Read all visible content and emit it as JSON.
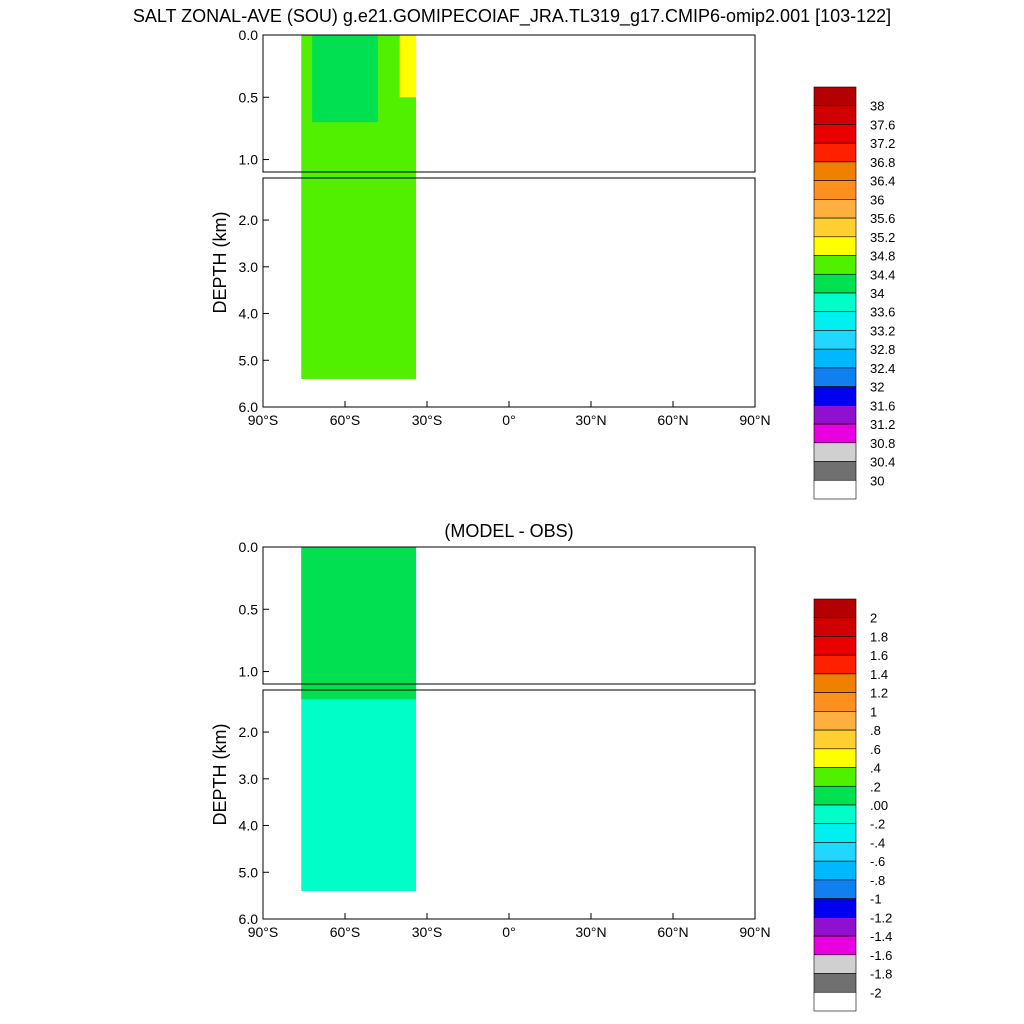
{
  "title": "SALT ZONAL-AVE (SOU) g.e21.GOMIPECOIAF_JRA.TL319_g17.CMIP6-omip2.001 [103-122]",
  "chart_data": [
    {
      "type": "heatmap",
      "title": "SALT ZONAL-AVE (SOU) g.e21.GOMIPECOIAF_JRA.TL319_g17.CMIP6-omip2.001 [103-122]",
      "ylabel": "DEPTH (km)",
      "xlabel": "",
      "xticks": [
        "90°S",
        "60°S",
        "30°S",
        "0°",
        "30°N",
        "60°N",
        "90°N"
      ],
      "yticks_upper": [
        "0.0",
        "0.5",
        "1.0"
      ],
      "yticks_lower": [
        "2.0",
        "3.0",
        "4.0",
        "5.0",
        "6.0"
      ],
      "xlim": [
        -90,
        90
      ],
      "ylim": [
        0,
        6
      ],
      "colorbar": {
        "labels": [
          "38",
          "37.6",
          "37.2",
          "36.8",
          "36.4",
          "36",
          "35.6",
          "35.2",
          "34.8",
          "34.4",
          "34",
          "33.6",
          "33.2",
          "32.8",
          "32.4",
          "32",
          "31.6",
          "31.2",
          "30.8",
          "30.4",
          "30"
        ],
        "colors": [
          "#b40000",
          "#d00000",
          "#e80000",
          "#ff2000",
          "#f08000",
          "#ff9020",
          "#ffb040",
          "#ffd030",
          "#ffff00",
          "#50f000",
          "#00e050",
          "#00ffc8",
          "#00f0f0",
          "#20d8ff",
          "#00b8ff",
          "#1080f0",
          "#0000f0",
          "#9010d0",
          "#e800e0",
          "#d0d0d0",
          "#707070",
          "#ffffff"
        ]
      },
      "fields": [
        {
          "name": "34.4",
          "lat_min": -76,
          "lat_max": -34,
          "depth_min": 0,
          "depth_max": 5.4,
          "color": "#50f000"
        },
        {
          "name": "34",
          "lat_min": -72,
          "lat_max": -48,
          "depth_min": 0,
          "depth_max": 0.7,
          "color": "#00e050"
        },
        {
          "name": "35.2",
          "lat_min": -40,
          "lat_max": -34,
          "depth_min": 0,
          "depth_max": 0.5,
          "color": "#ffff00"
        }
      ]
    },
    {
      "type": "heatmap",
      "title": "(MODEL - OBS)",
      "ylabel": "DEPTH (km)",
      "xlabel": "",
      "xticks": [
        "90°S",
        "60°S",
        "30°S",
        "0°",
        "30°N",
        "60°N",
        "90°N"
      ],
      "yticks_upper": [
        "0.0",
        "0.5",
        "1.0"
      ],
      "yticks_lower": [
        "2.0",
        "3.0",
        "4.0",
        "5.0",
        "6.0"
      ],
      "xlim": [
        -90,
        90
      ],
      "ylim": [
        0,
        6
      ],
      "colorbar": {
        "labels": [
          "2",
          "1.8",
          "1.6",
          "1.4",
          "1.2",
          "1",
          ".8",
          ".6",
          ".4",
          ".2",
          ".00",
          "-.2",
          "-.4",
          "-.6",
          "-.8",
          "-1",
          "-1.2",
          "-1.4",
          "-1.6",
          "-1.8",
          "-2"
        ],
        "colors": [
          "#b40000",
          "#d00000",
          "#e80000",
          "#ff2000",
          "#f08000",
          "#ff9020",
          "#ffb040",
          "#ffd030",
          "#ffff00",
          "#50f000",
          "#00e050",
          "#00ffc8",
          "#00f0f0",
          "#20d8ff",
          "#00b8ff",
          "#1080f0",
          "#0000f0",
          "#9010d0",
          "#e800e0",
          "#d0d0d0",
          "#707070",
          "#ffffff"
        ]
      },
      "fields": [
        {
          "name": "-.2",
          "lat_min": -76,
          "lat_max": -34,
          "depth_min": 0,
          "depth_max": 5.4,
          "color": "#00ffc8"
        },
        {
          "name": ".00",
          "lat_min": -76,
          "lat_max": -34,
          "depth_min": 0,
          "depth_max": 1.3,
          "color": "#00e050"
        }
      ]
    }
  ]
}
